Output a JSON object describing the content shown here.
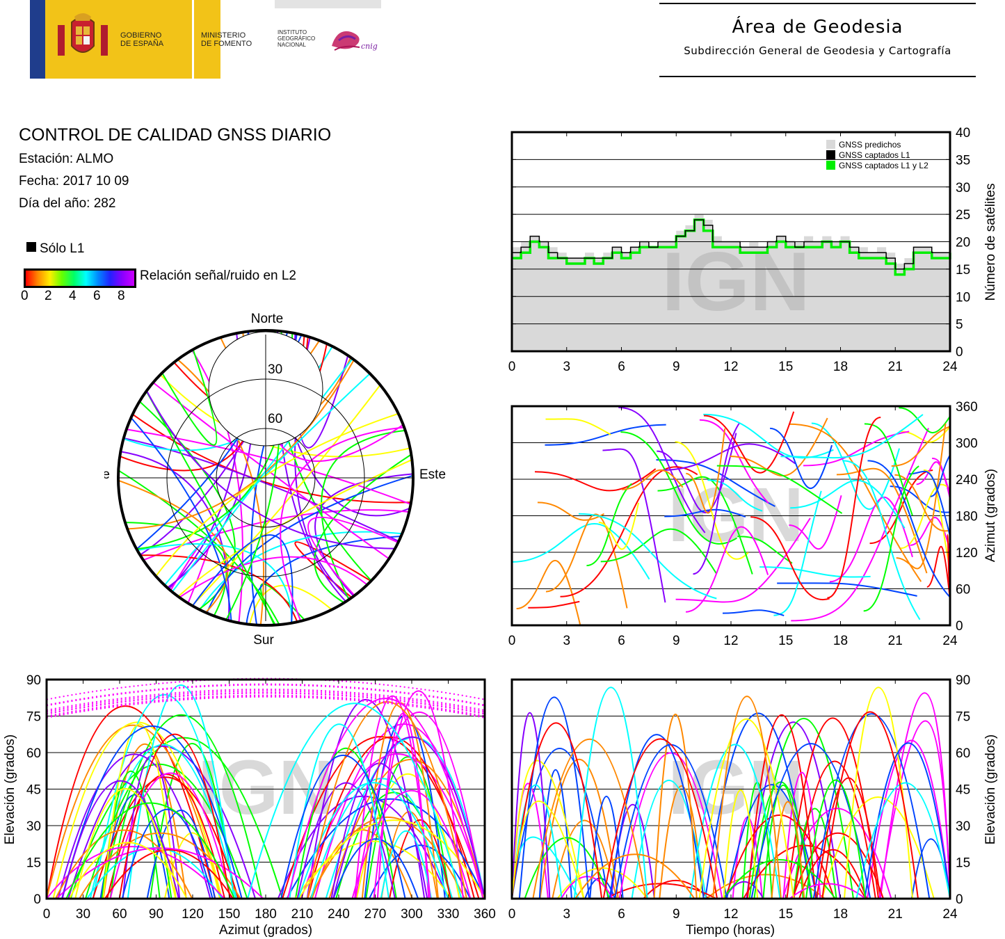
{
  "header": {
    "gov_line1": "GOBIERNO",
    "gov_line2": "DE ESPAÑA",
    "min_line1": "MINISTERIO",
    "min_line2": "DE FOMENTO",
    "ign_line1": "INSTITUTO",
    "ign_line2": "GEOGRÁFICO",
    "ign_line3": "NACIONAL",
    "cnig": "cnig",
    "area_title": "Área de Geodesia",
    "area_subtitle": "Subdirección General de Geodesia y Cartografía"
  },
  "report": {
    "title": "CONTROL DE CALIDAD GNSS DIARIO",
    "station": "Estación: ALMO",
    "date": "Fecha: 2017 10 09",
    "doy": "Día del año: 282",
    "l1_only_label": "Sólo L1",
    "snr_label": "Relación señal/ruido en L2",
    "snr_ticks": [
      "0",
      "2",
      "4",
      "6",
      "8"
    ]
  },
  "colors": {
    "grid": "#000000",
    "predicted_fill": "#d9d9d9",
    "l1": "#000000",
    "l1l2": "#00ee00",
    "snr_scale": [
      "#ff0000",
      "#ff8800",
      "#ffff00",
      "#00ff00",
      "#00ffff",
      "#0044ff",
      "#8800ff",
      "#ff00ff"
    ]
  },
  "watermark": "IGN",
  "chart_data": [
    {
      "id": "sat_count",
      "type": "line",
      "x": [
        0,
        0.5,
        1,
        1.5,
        2,
        2.5,
        3,
        3.5,
        4,
        4.5,
        5,
        5.5,
        6,
        6.5,
        7,
        7.5,
        8,
        8.5,
        9,
        9.5,
        10,
        10.5,
        11,
        11.5,
        12,
        12.5,
        13,
        13.5,
        14,
        14.5,
        15,
        15.5,
        16,
        16.5,
        17,
        17.5,
        18,
        18.5,
        19,
        19.5,
        20,
        20.5,
        21,
        21.5,
        22,
        22.5,
        23,
        23.5,
        24
      ],
      "series": [
        {
          "name": "GNSS predichos",
          "values": [
            19,
            20,
            21,
            20,
            19,
            18,
            17,
            17,
            18,
            17,
            18,
            19,
            18,
            19,
            20,
            19,
            20,
            20,
            22,
            23,
            25,
            24,
            21,
            20,
            20,
            19,
            20,
            19,
            20,
            21,
            20,
            20,
            21,
            20,
            21,
            20,
            21,
            19,
            19,
            18,
            19,
            18,
            16,
            17,
            19,
            19,
            18,
            18,
            19
          ]
        },
        {
          "name": "GNSS captados L1",
          "values": [
            18,
            19,
            21,
            20,
            18,
            17,
            17,
            17,
            17,
            17,
            17,
            19,
            18,
            19,
            20,
            19,
            20,
            20,
            21,
            22,
            24,
            23,
            20,
            20,
            20,
            19,
            19,
            19,
            20,
            21,
            20,
            19,
            20,
            20,
            20,
            20,
            20,
            19,
            18,
            18,
            18,
            17,
            15,
            16,
            19,
            19,
            18,
            18,
            19
          ]
        },
        {
          "name": "GNSS captados L1 y L2",
          "values": [
            17,
            18,
            20,
            19,
            17,
            17,
            16,
            16,
            17,
            16,
            17,
            18,
            17,
            18,
            19,
            19,
            19,
            19,
            21,
            22,
            24,
            22,
            19,
            19,
            19,
            18,
            18,
            18,
            19,
            20,
            19,
            19,
            19,
            19,
            20,
            19,
            20,
            18,
            17,
            17,
            17,
            16,
            14,
            15,
            18,
            18,
            17,
            17,
            18
          ]
        }
      ],
      "xlim": [
        0,
        24
      ],
      "ylim": [
        0,
        40
      ],
      "xticks": [
        "0",
        "3",
        "6",
        "9",
        "12",
        "15",
        "18",
        "21",
        "24"
      ],
      "yticks": [
        "0",
        "5",
        "10",
        "15",
        "20",
        "25",
        "30",
        "35",
        "40"
      ],
      "xlabel": "",
      "ylabel": "Número de satélites",
      "grid": "horizontal",
      "legend": "top-right"
    },
    {
      "id": "azimuth_time",
      "type": "scatter",
      "xlim": [
        0,
        24
      ],
      "ylim": [
        0,
        360
      ],
      "xticks": [
        "0",
        "3",
        "6",
        "9",
        "12",
        "15",
        "18",
        "21",
        "24"
      ],
      "yticks": [
        "0",
        "60",
        "120",
        "180",
        "240",
        "300",
        "360"
      ],
      "xlabel": "",
      "ylabel": "Azimut (grados)",
      "grid": "horizontal"
    },
    {
      "id": "elevation_azimuth",
      "type": "scatter",
      "xlim": [
        0,
        360
      ],
      "ylim": [
        0,
        90
      ],
      "xticks": [
        "0",
        "30",
        "60",
        "90",
        "120",
        "150",
        "180",
        "210",
        "240",
        "270",
        "300",
        "330",
        "360"
      ],
      "yticks": [
        "0",
        "15",
        "30",
        "45",
        "60",
        "75",
        "90"
      ],
      "xlabel": "Azimut (grados)",
      "ylabel": "Elevación (grados)",
      "grid": "horizontal"
    },
    {
      "id": "elevation_time",
      "type": "scatter",
      "xlim": [
        0,
        24
      ],
      "ylim": [
        0,
        90
      ],
      "xticks": [
        "0",
        "3",
        "6",
        "9",
        "12",
        "15",
        "18",
        "21",
        "24"
      ],
      "yticks": [
        "0",
        "15",
        "30",
        "45",
        "60",
        "75",
        "90"
      ],
      "xlabel": "Tiempo (horas)",
      "ylabel": "Elevación (grados)",
      "grid": "horizontal"
    },
    {
      "id": "skyplot",
      "type": "scatter",
      "labels": {
        "north": "Norte",
        "south": "Sur",
        "east": "Este",
        "west": "Oeste"
      },
      "rings": [
        "30",
        "60"
      ]
    }
  ]
}
